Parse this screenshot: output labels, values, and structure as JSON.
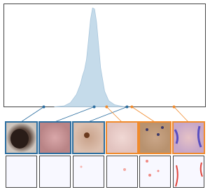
{
  "chart_data": {
    "type": "area",
    "x": [
      0.25,
      0.3,
      0.33,
      0.36,
      0.38,
      0.39,
      0.4,
      0.41,
      0.42,
      0.43,
      0.44,
      0.45,
      0.46,
      0.47,
      0.48,
      0.5,
      0.52,
      0.55,
      0.6
    ],
    "values": [
      0,
      0.01,
      0.04,
      0.12,
      0.22,
      0.3,
      0.36,
      0.46,
      0.65,
      0.85,
      0.96,
      0.95,
      0.82,
      0.6,
      0.38,
      0.15,
      0.06,
      0.02,
      0
    ],
    "color": "#c5dbea",
    "xlim": [
      0,
      1
    ],
    "ylim": [
      0,
      1
    ],
    "points": {
      "x": [
        0.198,
        0.448,
        0.611,
        0.51,
        0.635,
        0.844
      ],
      "colors": [
        "#2c6ea0",
        "#2c6ea0",
        "#2c6ea0",
        "#f08a2c",
        "#f08a2c",
        "#f08a2c"
      ]
    }
  }
}
